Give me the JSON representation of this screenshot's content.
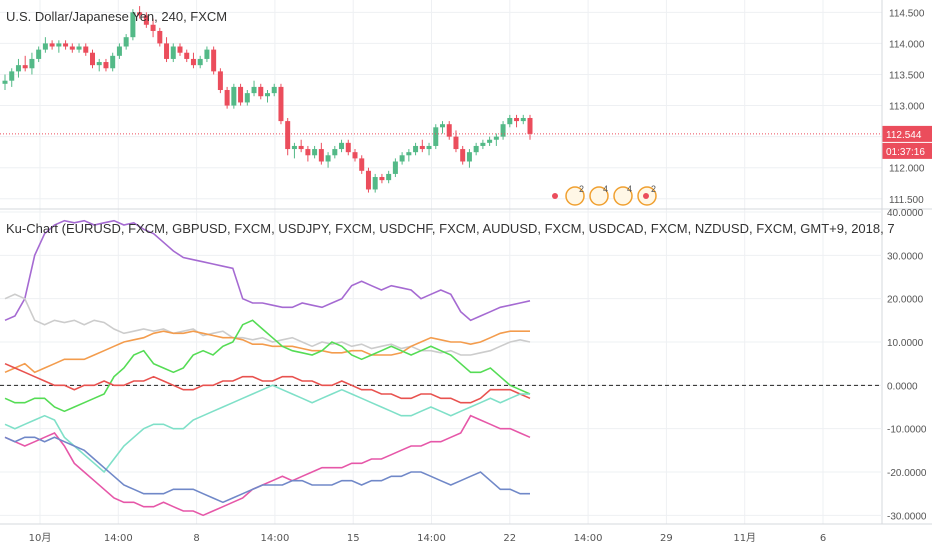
{
  "header": {
    "main_title": "U.S. Dollar/Japanese Yen, 240, FXCM",
    "indicator_title": "Ku-Chart (EURUSD, FXCM, GBPUSD, FXCM, USDJPY, FXCM, USDCHF, FXCM, AUDUSD, FXCM, USDCAD, FXCM, NZDUSD, FXCM, GMT+9, 2018, 7"
  },
  "colors": {
    "up": "#53b987",
    "down": "#eb4d5c",
    "grid": "#eef0f3",
    "axis_text": "#555555",
    "price_line": "#eb4d5c",
    "price_label_bg": "#eb4d5c"
  },
  "price_label": {
    "value": "112.544",
    "countdown": "01:37:16"
  },
  "event_markers": [
    "2",
    "4",
    "4",
    "2"
  ],
  "chart_data": [
    {
      "type": "candlestick",
      "title": "U.S. Dollar/Japanese Yen, 240, FXCM",
      "ylim": [
        111.4,
        114.65
      ],
      "yticks": [
        111.5,
        112.0,
        112.5,
        113.0,
        113.5,
        114.0,
        114.5
      ],
      "ytick_labels": [
        "111.500",
        "112.000",
        "112.500",
        "113.000",
        "113.500",
        "114.000",
        "114.500"
      ],
      "last_price": 112.544,
      "candles": [
        [
          113.35,
          113.5,
          113.25,
          113.4
        ],
        [
          113.4,
          113.6,
          113.3,
          113.55
        ],
        [
          113.55,
          113.75,
          113.45,
          113.65
        ],
        [
          113.65,
          113.8,
          113.55,
          113.6
        ],
        [
          113.6,
          113.85,
          113.5,
          113.75
        ],
        [
          113.75,
          113.95,
          113.7,
          113.9
        ],
        [
          113.9,
          114.1,
          113.85,
          114.0
        ],
        [
          114.0,
          114.05,
          113.9,
          113.95
        ],
        [
          113.95,
          114.05,
          113.85,
          114.0
        ],
        [
          114.0,
          114.05,
          113.9,
          113.95
        ],
        [
          113.95,
          114.0,
          113.85,
          113.9
        ],
        [
          113.9,
          114.0,
          113.85,
          113.95
        ],
        [
          113.95,
          114.0,
          113.8,
          113.85
        ],
        [
          113.85,
          113.9,
          113.6,
          113.65
        ],
        [
          113.65,
          113.75,
          113.55,
          113.7
        ],
        [
          113.7,
          113.75,
          113.55,
          113.6
        ],
        [
          113.6,
          113.85,
          113.55,
          113.8
        ],
        [
          113.8,
          114.0,
          113.75,
          113.95
        ],
        [
          113.95,
          114.15,
          113.9,
          114.1
        ],
        [
          114.1,
          114.55,
          114.05,
          114.5
        ],
        [
          114.5,
          114.6,
          114.4,
          114.45
        ],
        [
          114.45,
          114.5,
          114.25,
          114.3
        ],
        [
          114.3,
          114.4,
          114.1,
          114.2
        ],
        [
          114.2,
          114.25,
          113.95,
          114.0
        ],
        [
          114.0,
          114.1,
          113.7,
          113.75
        ],
        [
          113.75,
          114.0,
          113.7,
          113.95
        ],
        [
          113.95,
          114.0,
          113.8,
          113.85
        ],
        [
          113.85,
          113.9,
          113.7,
          113.75
        ],
        [
          113.75,
          113.85,
          113.6,
          113.65
        ],
        [
          113.65,
          113.8,
          113.6,
          113.75
        ],
        [
          113.75,
          113.95,
          113.7,
          113.9
        ],
        [
          113.9,
          113.95,
          113.5,
          113.55
        ],
        [
          113.55,
          113.6,
          113.2,
          113.25
        ],
        [
          113.25,
          113.3,
          112.95,
          113.0
        ],
        [
          113.0,
          113.35,
          112.95,
          113.3
        ],
        [
          113.3,
          113.35,
          113.0,
          113.05
        ],
        [
          113.05,
          113.25,
          113.0,
          113.2
        ],
        [
          113.2,
          113.4,
          113.15,
          113.3
        ],
        [
          113.3,
          113.35,
          113.1,
          113.15
        ],
        [
          113.15,
          113.25,
          113.05,
          113.2
        ],
        [
          113.2,
          113.35,
          113.15,
          113.3
        ],
        [
          113.3,
          113.35,
          112.7,
          112.75
        ],
        [
          112.75,
          112.8,
          112.2,
          112.3
        ],
        [
          112.3,
          112.4,
          112.15,
          112.35
        ],
        [
          112.35,
          112.45,
          112.25,
          112.3
        ],
        [
          112.3,
          112.35,
          112.1,
          112.2
        ],
        [
          112.2,
          112.35,
          112.15,
          112.3
        ],
        [
          112.3,
          112.4,
          112.05,
          112.1
        ],
        [
          112.1,
          112.25,
          112.0,
          112.2
        ],
        [
          112.2,
          112.35,
          112.15,
          112.3
        ],
        [
          112.3,
          112.45,
          112.25,
          112.4
        ],
        [
          112.4,
          112.45,
          112.2,
          112.25
        ],
        [
          112.25,
          112.3,
          112.1,
          112.15
        ],
        [
          112.15,
          112.2,
          111.9,
          111.95
        ],
        [
          111.95,
          112.0,
          111.6,
          111.65
        ],
        [
          111.65,
          111.9,
          111.6,
          111.85
        ],
        [
          111.85,
          111.9,
          111.75,
          111.8
        ],
        [
          111.8,
          111.95,
          111.75,
          111.9
        ],
        [
          111.9,
          112.15,
          111.85,
          112.1
        ],
        [
          112.1,
          112.25,
          112.05,
          112.2
        ],
        [
          112.2,
          112.3,
          112.1,
          112.25
        ],
        [
          112.25,
          112.4,
          112.2,
          112.35
        ],
        [
          112.35,
          112.45,
          112.25,
          112.3
        ],
        [
          112.3,
          112.4,
          112.2,
          112.35
        ],
        [
          112.35,
          112.7,
          112.3,
          112.65
        ],
        [
          112.65,
          112.75,
          112.55,
          112.7
        ],
        [
          112.7,
          112.75,
          112.45,
          112.5
        ],
        [
          112.5,
          112.6,
          112.25,
          112.3
        ],
        [
          112.3,
          112.35,
          112.05,
          112.1
        ],
        [
          112.1,
          112.3,
          112.0,
          112.25
        ],
        [
          112.25,
          112.4,
          112.2,
          112.35
        ],
        [
          112.35,
          112.45,
          112.3,
          112.4
        ],
        [
          112.4,
          112.5,
          112.35,
          112.45
        ],
        [
          112.45,
          112.55,
          112.35,
          112.5
        ],
        [
          112.5,
          112.75,
          112.45,
          112.7
        ],
        [
          112.7,
          112.85,
          112.65,
          112.8
        ],
        [
          112.8,
          112.85,
          112.65,
          112.75
        ],
        [
          112.75,
          112.85,
          112.7,
          112.8
        ],
        [
          112.8,
          112.85,
          112.45,
          112.544
        ]
      ]
    },
    {
      "type": "line",
      "title": "Ku-Chart (EURUSD, FXCM, GBPUSD, FXCM, USDJPY, FXCM, USDCHF, FXCM, AUDUSD, FXCM, USDCAD, FXCM, NZDUSD, FXCM, GMT+9, 2018, 7",
      "ylim": [
        -32,
        40
      ],
      "yticks": [
        -30,
        -20,
        -10,
        0,
        10,
        20,
        30,
        40
      ],
      "ytick_labels": [
        "-30.0000",
        "-20.0000",
        "-10.0000",
        "0.0000",
        "10.0000",
        "20.0000",
        "30.0000",
        "40.0000"
      ],
      "zero_line": true,
      "series": [
        {
          "color": "#a56ad2",
          "values": [
            15,
            16,
            20,
            30,
            35,
            37,
            38,
            37.5,
            38,
            37,
            37.5,
            38,
            37,
            37.5,
            36,
            35,
            33,
            31,
            29.5,
            29,
            28.5,
            28,
            27.5,
            27,
            20,
            19,
            19,
            18.5,
            18,
            18,
            19,
            18.5,
            18,
            19,
            20,
            23,
            24,
            23,
            22,
            23,
            22.5,
            22,
            20,
            21,
            22,
            21,
            17,
            15,
            16,
            17,
            18,
            18.5,
            19,
            19.5
          ]
        },
        {
          "color": "#cccccc",
          "values": [
            20,
            21,
            20,
            15,
            14,
            15,
            14.5,
            15,
            14,
            15,
            14.5,
            13,
            12,
            12.5,
            13,
            12.5,
            13,
            12,
            12.5,
            13,
            11.5,
            12,
            12.5,
            11,
            11,
            10.5,
            11,
            10,
            10.5,
            11,
            10,
            9,
            10,
            9.5,
            10,
            9,
            9.5,
            8.5,
            9,
            9.5,
            8.5,
            9,
            8,
            8,
            7.5,
            8,
            7,
            7,
            7.5,
            8,
            9,
            10,
            10.5,
            10
          ]
        },
        {
          "color": "#f39c4d",
          "values": [
            3,
            4,
            5,
            3,
            4,
            5,
            6,
            6,
            6,
            7,
            8,
            9,
            10,
            10.5,
            11,
            12,
            12.5,
            12,
            12,
            12.5,
            12,
            11.5,
            11,
            11,
            10.5,
            9.5,
            9.5,
            9,
            9,
            9,
            8.5,
            8,
            8,
            7.5,
            7.5,
            8,
            8,
            7,
            7,
            7,
            7.5,
            9,
            10,
            11,
            10.5,
            10,
            10,
            9.5,
            10,
            11,
            12,
            12.5,
            12.5,
            12.5
          ]
        },
        {
          "color": "#55dc55",
          "values": [
            -3,
            -4,
            -4,
            -3,
            -3,
            -5,
            -6,
            -5,
            -4,
            -3,
            -2,
            2,
            4,
            7,
            8,
            5,
            4,
            3,
            4,
            7,
            8,
            7,
            9,
            10,
            14,
            15,
            13,
            11,
            9,
            8,
            7.5,
            7,
            8,
            10,
            9,
            7,
            6,
            7,
            8,
            9,
            8,
            7,
            8,
            9,
            8,
            7,
            5,
            3,
            3,
            4,
            2,
            0,
            -1,
            -2
          ]
        },
        {
          "color": "#e8524f",
          "values": [
            5,
            4,
            3,
            2,
            1,
            0,
            0,
            -1,
            0,
            0,
            1,
            0,
            0,
            1,
            1,
            2,
            1,
            0,
            -1,
            -1,
            0,
            0,
            1,
            1,
            2,
            2,
            1,
            1,
            2,
            2,
            1,
            1,
            0,
            0,
            1,
            0,
            -1,
            -1,
            -2,
            -2,
            -3,
            -3,
            -2,
            -2,
            -3,
            -3,
            -4,
            -4,
            -3,
            -1,
            -1,
            -1,
            -2,
            -3
          ]
        },
        {
          "color": "#7fe0c8",
          "values": [
            -9,
            -10,
            -9,
            -8,
            -7,
            -8,
            -12,
            -14,
            -16,
            -18,
            -20,
            -17,
            -14,
            -12,
            -10,
            -9,
            -9,
            -10,
            -10,
            -8,
            -7,
            -6,
            -5,
            -4,
            -3,
            -2,
            -1,
            0,
            -1,
            -2,
            -3,
            -4,
            -3,
            -2,
            -1,
            -2,
            -3,
            -4,
            -5,
            -6,
            -7,
            -7,
            -6,
            -5,
            -6,
            -7,
            -6,
            -5,
            -4,
            -3,
            -4,
            -3,
            -2,
            -2
          ]
        },
        {
          "color": "#e657a8",
          "values": [
            -12,
            -13,
            -14,
            -13,
            -12,
            -11,
            -14,
            -18,
            -20,
            -22,
            -24,
            -26,
            -27,
            -27,
            -28,
            -28,
            -27,
            -28,
            -29,
            -29,
            -30,
            -29,
            -28,
            -27,
            -26,
            -24,
            -23,
            -22,
            -21,
            -22,
            -21,
            -20,
            -19,
            -19,
            -19,
            -18,
            -18,
            -17,
            -17,
            -16,
            -15,
            -14,
            -14,
            -13,
            -13,
            -12,
            -11,
            -7,
            -8,
            -9,
            -10,
            -10,
            -11,
            -12
          ]
        },
        {
          "color": "#7088c8",
          "values": [
            -12,
            -13,
            -12,
            -12,
            -13,
            -12,
            -13,
            -14,
            -15,
            -17,
            -19,
            -21,
            -23,
            -24,
            -25,
            -25,
            -25,
            -24,
            -24,
            -24,
            -25,
            -26,
            -27,
            -26,
            -25,
            -24,
            -23,
            -23,
            -23,
            -22,
            -22,
            -23,
            -23,
            -23,
            -22,
            -22,
            -23,
            -22,
            -22,
            -21,
            -21,
            -20,
            -20,
            -21,
            -22,
            -23,
            -22,
            -21,
            -20,
            -22,
            -24,
            -24,
            -25,
            -25
          ]
        }
      ]
    }
  ],
  "time_axis": {
    "labels": [
      "10月",
      "14:00",
      "8",
      "14:00",
      "15",
      "14:00",
      "22",
      "14:00",
      "29",
      "11月",
      "6"
    ]
  }
}
